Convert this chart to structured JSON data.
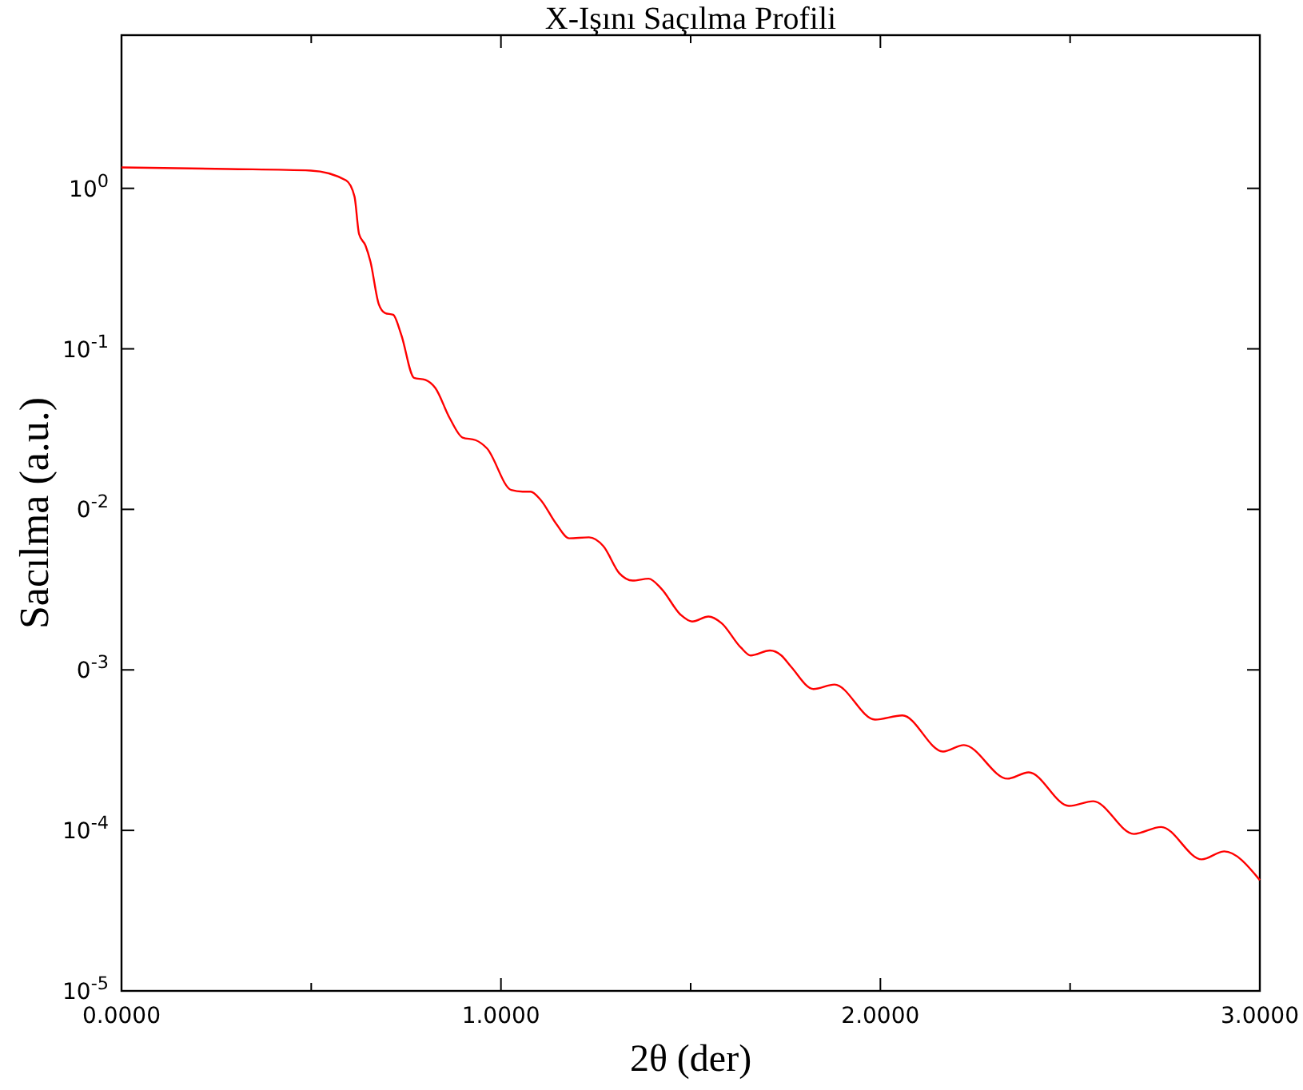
{
  "chart_data": {
    "type": "line",
    "title": "X-Işını Saçılma Profili",
    "xlabel": "2θ (der)",
    "ylabel": "Sacılma (a.u.)",
    "log": "y",
    "xlim": [
      0,
      3
    ],
    "ylim": [
      1e-05,
      9
    ],
    "xticks": [
      {
        "value": 0,
        "label": "0.0000"
      },
      {
        "value": 0.5,
        "label": null
      },
      {
        "value": 1,
        "label": "1.0000"
      },
      {
        "value": 1.5,
        "label": null
      },
      {
        "value": 2,
        "label": "2.0000"
      },
      {
        "value": 2.5,
        "label": null
      },
      {
        "value": 3,
        "label": "3.0000"
      }
    ],
    "yticks": [
      {
        "value": 1,
        "label": "10$^{0}$"
      },
      {
        "value": 0.1,
        "label": "10$^{-1}$"
      },
      {
        "value": 0.01,
        "label": "0$^{-2}$"
      },
      {
        "value": 0.001,
        "label": "0$^{-3}$"
      },
      {
        "value": 0.0001,
        "label": "10$^{-4}$"
      },
      {
        "value": 1e-05,
        "label": "10$^{-5}$"
      }
    ],
    "grid": false,
    "marker": "none",
    "line_style": "solid",
    "series": [
      {
        "color": "#ff0000",
        "x": [
          0,
          0.281,
          0.499,
          0.592,
          0.614,
          0.626,
          0.643,
          0.656,
          0.678,
          0.695,
          0.716,
          0.737,
          0.771,
          0.801,
          0.827,
          0.865,
          0.899,
          0.933,
          0.963,
          1.027,
          1.057,
          1.078,
          1.104,
          1.146,
          1.18,
          1.232,
          1.27,
          1.312,
          1.347,
          1.389,
          1.423,
          1.474,
          1.504,
          1.547,
          1.581,
          1.632,
          1.658,
          1.709,
          1.739,
          1.764,
          1.824,
          1.879,
          1.986,
          2.058,
          2.165,
          2.22,
          2.335,
          2.391,
          2.497,
          2.561,
          2.668,
          2.74,
          2.847,
          2.906,
          3
        ],
        "values": [
          1.35,
          1.32,
          1.29,
          1.12,
          0.89,
          0.52,
          0.44,
          0.35,
          0.19,
          0.167,
          0.163,
          0.123,
          0.066,
          0.064,
          0.057,
          0.037,
          0.028,
          0.027,
          0.024,
          0.0132,
          0.0129,
          0.0129,
          0.0115,
          0.0081,
          0.0066,
          0.0067,
          0.0059,
          0.004,
          0.0036,
          0.0037,
          0.0032,
          0.0022,
          0.002,
          0.00215,
          0.00196,
          0.00138,
          0.00123,
          0.00132,
          0.00123,
          0.00105,
          0.00076,
          0.00081,
          0.00049,
          0.00052,
          0.00031,
          0.00034,
          0.00021,
          0.00023,
          0.000142,
          0.000152,
          9.5e-05,
          0.000105,
          6.6e-05,
          7.4e-05,
          4.9e-05
        ]
      }
    ]
  }
}
